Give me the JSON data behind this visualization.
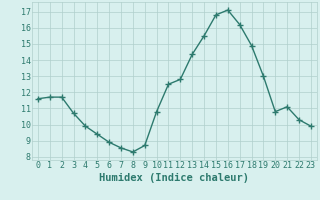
{
  "x": [
    0,
    1,
    2,
    3,
    4,
    5,
    6,
    7,
    8,
    9,
    10,
    11,
    12,
    13,
    14,
    15,
    16,
    17,
    18,
    19,
    20,
    21,
    22,
    23
  ],
  "y": [
    11.6,
    11.7,
    11.7,
    10.7,
    9.9,
    9.4,
    8.9,
    8.55,
    8.3,
    8.7,
    10.8,
    12.5,
    12.8,
    14.35,
    15.5,
    16.8,
    17.1,
    16.2,
    14.9,
    13.0,
    10.8,
    11.1,
    10.3,
    9.9
  ],
  "line_color": "#2d7a6e",
  "marker": "+",
  "markersize": 4,
  "linewidth": 1.0,
  "background_color": "#d8f0ee",
  "grid_color": "#b0d0cc",
  "xlabel": "Humidex (Indice chaleur)",
  "xlabel_fontsize": 7.5,
  "tick_fontsize": 6.0,
  "ylim": [
    7.8,
    17.6
  ],
  "xlim": [
    -0.5,
    23.5
  ],
  "xtick_vals": [
    0,
    1,
    2,
    3,
    4,
    5,
    6,
    7,
    8,
    9,
    10,
    11,
    12,
    13,
    14,
    15,
    16,
    17,
    18,
    19,
    20,
    21,
    22,
    23
  ],
  "ytick_vals": [
    8,
    9,
    10,
    11,
    12,
    13,
    14,
    15,
    16,
    17
  ]
}
